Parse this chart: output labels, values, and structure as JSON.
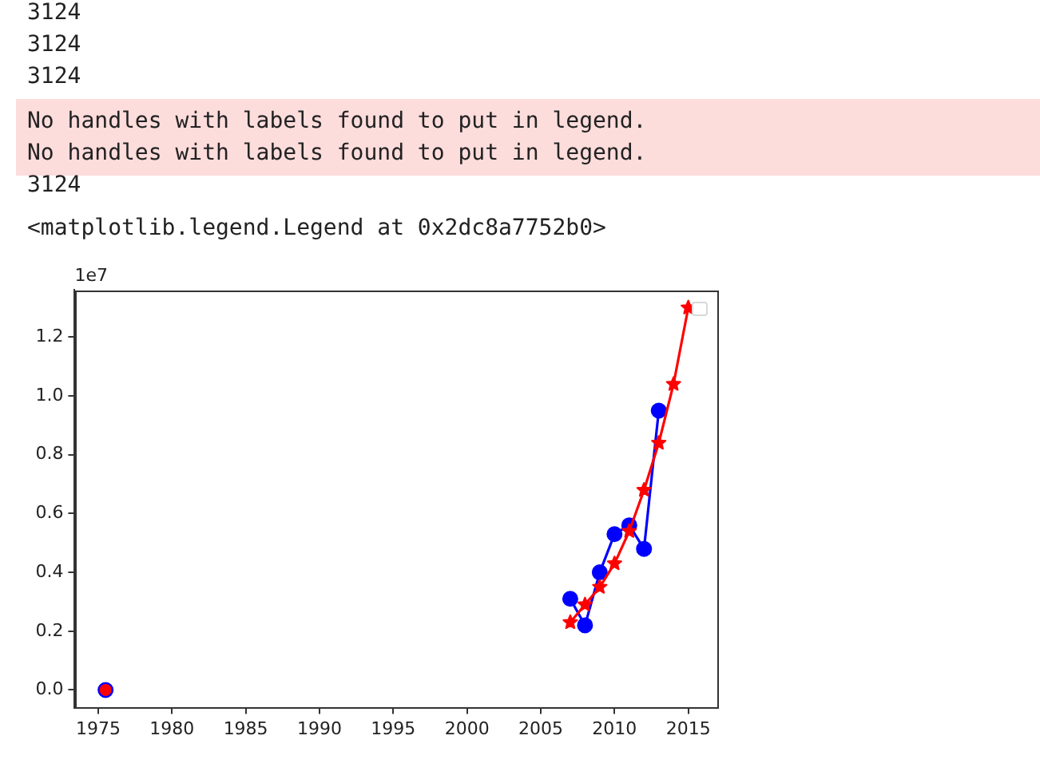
{
  "chart_data": {
    "type": "line",
    "annotations": [
      "3124",
      "3124",
      "3124",
      "No handles with labels found to put in legend.",
      "No handles with labels found to put in legend.",
      "3124",
      "<matplotlib.legend.Legend at 0x2dc8a7752b0>",
      "1e7"
    ],
    "xlim": [
      1973.4,
      2017
    ],
    "xticks": [
      1975,
      1980,
      1985,
      1990,
      1995,
      2000,
      2005,
      2010,
      2015
    ],
    "ylim": [
      -0.06,
      1.36
    ],
    "yticks": [
      {
        "value": 0,
        "label": "0.0"
      },
      0.2,
      0.4,
      0.6,
      0.8,
      {
        "value": 1,
        "label": "1.0"
      },
      1.2
    ],
    "series": [
      {
        "color": "#0000ff",
        "marker": "circle",
        "x": [
          2007,
          2008,
          2009,
          2010,
          2011,
          2012,
          2013
        ],
        "values": [
          0.31,
          0.22,
          0.4,
          0.53,
          0.56,
          0.48,
          0.95
        ]
      },
      {
        "type": "scatter",
        "color": "#0000ff",
        "marker": "circle",
        "x": [
          1975.5
        ],
        "values": [
          0
        ]
      },
      {
        "color": "#ff0000",
        "marker": "star",
        "x": [
          2007,
          2008,
          2009,
          2010,
          2011,
          2012,
          2013,
          2014,
          2015
        ],
        "values": [
          0.23,
          0.29,
          0.35,
          0.43,
          0.54,
          0.68,
          0.84,
          1.04,
          1.3
        ]
      },
      {
        "type": "scatter",
        "color": "#ff0000",
        "marker": "circle",
        "x": [
          1975.5
        ],
        "values": [
          0
        ]
      }
    ]
  }
}
